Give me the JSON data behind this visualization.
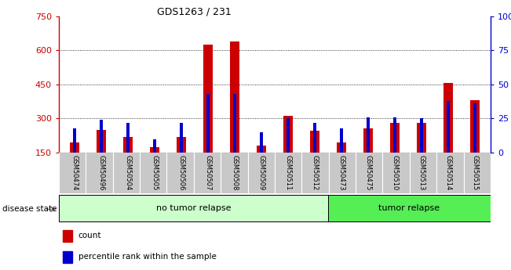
{
  "title": "GDS1263 / 231",
  "samples": [
    "GSM50474",
    "GSM50496",
    "GSM50504",
    "GSM50505",
    "GSM50506",
    "GSM50507",
    "GSM50508",
    "GSM50509",
    "GSM50511",
    "GSM50512",
    "GSM50473",
    "GSM50475",
    "GSM50510",
    "GSM50513",
    "GSM50514",
    "GSM50515"
  ],
  "count": [
    195,
    250,
    220,
    175,
    220,
    625,
    640,
    180,
    310,
    245,
    195,
    255,
    280,
    280,
    455,
    380
  ],
  "percentile": [
    18,
    24,
    22,
    10,
    22,
    43,
    43,
    15,
    25,
    22,
    18,
    26,
    26,
    25,
    38,
    36
  ],
  "no_tumor_count": 10,
  "tumor_count": 6,
  "ylim_left": [
    150,
    750
  ],
  "ylim_right": [
    0,
    100
  ],
  "yticks_left": [
    150,
    300,
    450,
    600,
    750
  ],
  "yticks_right": [
    0,
    25,
    50,
    75,
    100
  ],
  "ytick_labels_right": [
    "0",
    "25",
    "50",
    "75",
    "100%"
  ],
  "count_color": "#cc0000",
  "percentile_color": "#0000cc",
  "no_tumor_color": "#ccffcc",
  "tumor_color": "#55ee55",
  "label_bg_color": "#c8c8c8",
  "baseline": 150,
  "red_bar_width": 0.35,
  "blue_bar_width": 0.12
}
